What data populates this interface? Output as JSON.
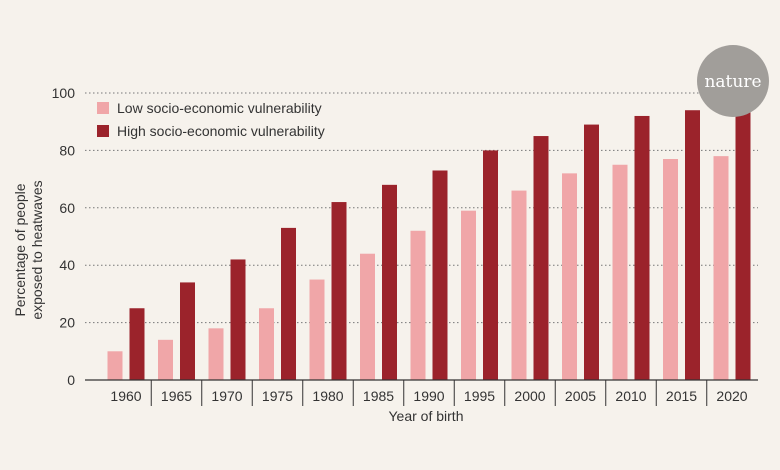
{
  "brand": {
    "logo": "nature"
  },
  "colors": {
    "background": "#f6f2ec",
    "low": "#f0a6a8",
    "high": "#9b232b",
    "grid": "#777777",
    "logo_circle": "#a19e9a"
  },
  "chart_data": {
    "type": "bar",
    "title": "",
    "xlabel": "Year of birth",
    "ylabel_lines": [
      "Percentage of people",
      "exposed to heatwaves"
    ],
    "ylim": [
      0,
      100
    ],
    "yticks": [
      0,
      20,
      40,
      60,
      80,
      100
    ],
    "grid": "horizontal dotted",
    "legend_position": "top-left",
    "categories": [
      "1960",
      "1965",
      "1970",
      "1975",
      "1980",
      "1985",
      "1990",
      "1995",
      "2000",
      "2005",
      "2010",
      "2015",
      "2020"
    ],
    "series": [
      {
        "name": "Low socio-economic vulnerability",
        "values": [
          10,
          14,
          18,
          25,
          35,
          44,
          52,
          59,
          66,
          72,
          75,
          77,
          78
        ]
      },
      {
        "name": "High socio-economic vulnerability",
        "values": [
          25,
          34,
          42,
          53,
          62,
          68,
          73,
          80,
          85,
          89,
          92,
          94,
          95
        ]
      }
    ]
  }
}
